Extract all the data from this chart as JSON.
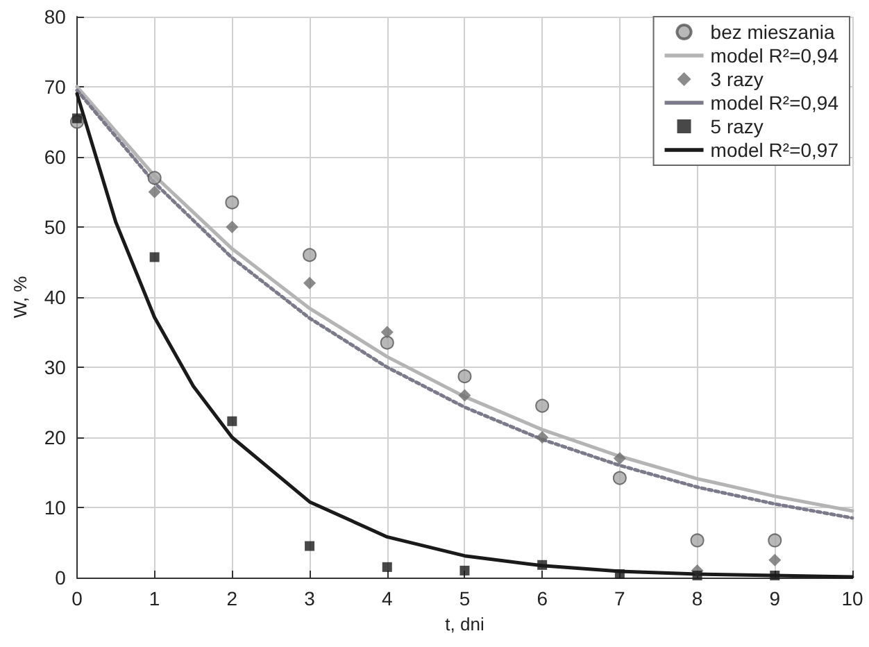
{
  "chart_data": {
    "type": "scatter",
    "xlabel": "t, dni",
    "ylabel": "W, %",
    "xlim": [
      0,
      10
    ],
    "xticks": [
      0,
      1,
      2,
      3,
      4,
      5,
      6,
      7,
      8,
      9,
      10
    ],
    "ylim": [
      0,
      80
    ],
    "yticks": [
      0,
      10,
      20,
      30,
      40,
      50,
      60,
      70,
      80
    ],
    "grid": true,
    "legend": "top right",
    "series": [
      {
        "name": "bez mieszania",
        "type": "scatter",
        "marker": "circle",
        "color": "#a6a6a6",
        "x": [
          0,
          1,
          2,
          3,
          4,
          5,
          6,
          7,
          8,
          9
        ],
        "values": [
          65,
          57,
          53.5,
          46,
          33.5,
          28.7,
          24.5,
          14.2,
          5.3,
          5.3
        ]
      },
      {
        "name": "model R²=0,94",
        "type": "line",
        "line_style": "solid",
        "marker": "none",
        "color": "#b4b4b4",
        "x": [
          0,
          1,
          2,
          3,
          4,
          5,
          6,
          7,
          8,
          9,
          10
        ],
        "values": [
          70,
          57.3,
          46.9,
          38.4,
          31.5,
          25.8,
          21.1,
          17.3,
          14.1,
          11.6,
          9.5
        ]
      },
      {
        "name": "3 razy",
        "type": "scatter",
        "marker": "diamond",
        "color": "#6e6e6e",
        "x": [
          1,
          2,
          3,
          4,
          5,
          6,
          7,
          8,
          9
        ],
        "values": [
          55,
          50,
          42,
          35,
          26,
          20,
          17,
          1,
          2.5
        ]
      },
      {
        "name": "model R²=0,94",
        "type": "line",
        "line_style": "dotted",
        "marker": "none",
        "color": "#7a7a8a",
        "x": [
          0,
          1,
          2,
          3,
          4,
          5,
          6,
          7,
          8,
          9,
          10
        ],
        "values": [
          69.5,
          56.3,
          45.6,
          37,
          30,
          24.3,
          19.7,
          16,
          12.9,
          10.5,
          8.5
        ]
      },
      {
        "name": "5 razy",
        "type": "scatter",
        "marker": "square",
        "color": "#1a1a1a",
        "x": [
          0,
          1,
          2,
          3,
          4,
          5,
          6,
          7,
          8,
          9
        ],
        "values": [
          65.5,
          45.7,
          22.3,
          4.5,
          1.5,
          1,
          1.8,
          0.5,
          0.3,
          0.3
        ]
      },
      {
        "name": "model R²=0,97",
        "type": "line",
        "line_style": "solid",
        "marker": "none",
        "color": "#1a1a1a",
        "x": [
          0,
          0.5,
          1,
          1.5,
          2,
          3,
          4,
          5,
          6,
          7,
          8,
          9,
          10
        ],
        "values": [
          69,
          50.7,
          37.1,
          27.3,
          20,
          10.8,
          5.8,
          3.1,
          1.7,
          0.9,
          0.5,
          0.3,
          0.1
        ]
      }
    ]
  }
}
